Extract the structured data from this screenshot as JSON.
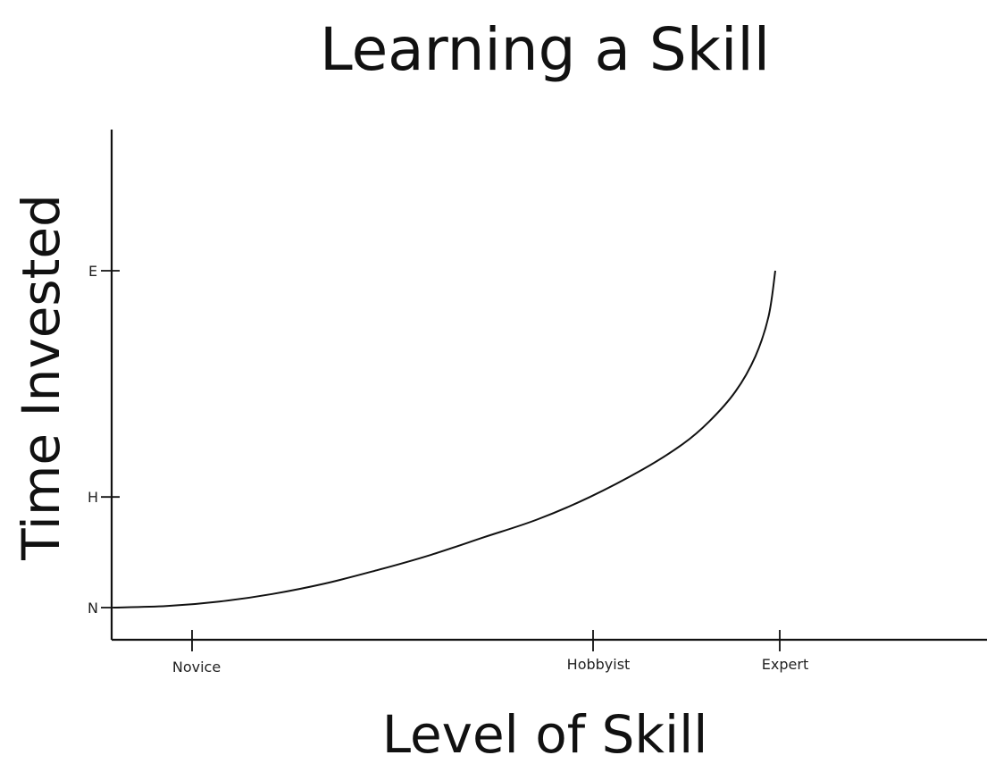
{
  "chart_data": {
    "type": "line",
    "title": "Learning a Skill",
    "xlabel": "Level of Skill",
    "ylabel": "Time Invested",
    "x_ticks": [
      "Novice",
      "Hobbyist",
      "Expert"
    ],
    "y_ticks": [
      "N",
      "H",
      "E"
    ],
    "xlim": [
      0,
      100
    ],
    "ylim": [
      0,
      100
    ],
    "x_tick_values": [
      12,
      72,
      100
    ],
    "y_tick_values": [
      0,
      22,
      67
    ],
    "series": [
      {
        "x": [
          0,
          8,
          16,
          24,
          32,
          40,
          48,
          56,
          64,
          72,
          80,
          86,
          90,
          94,
          97,
          99,
          100
        ],
        "y": [
          0,
          0.3,
          1.2,
          2.7,
          4.8,
          7.5,
          10.5,
          14,
          17.5,
          22,
          27.5,
          32.5,
          37,
          43,
          50,
          58,
          67
        ]
      }
    ],
    "grid": false,
    "legend": "none"
  }
}
